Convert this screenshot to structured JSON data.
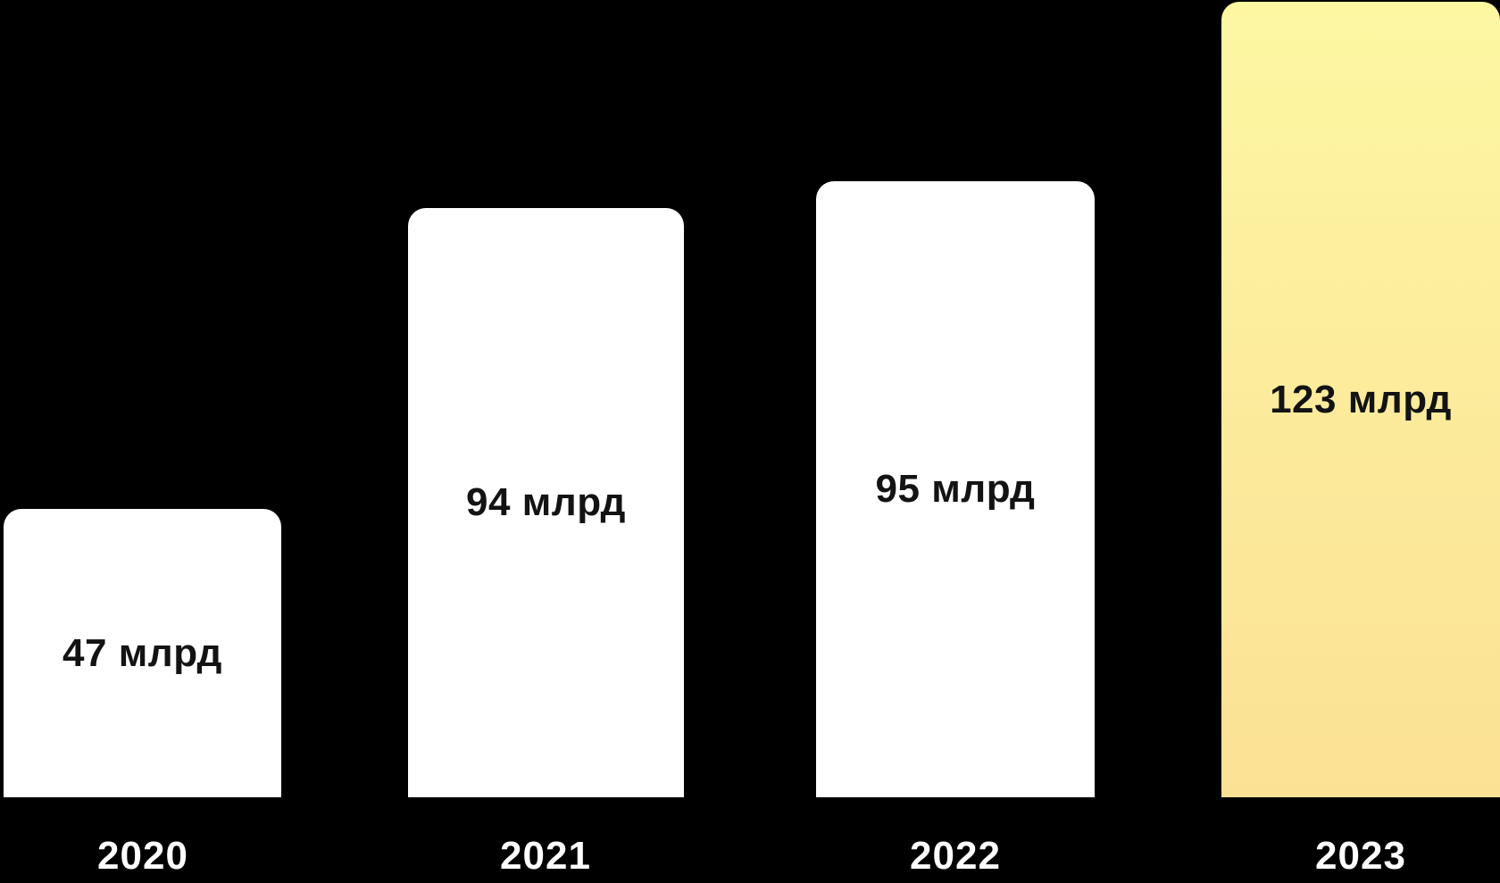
{
  "chart_data": {
    "type": "bar",
    "categories": [
      "2020",
      "2021",
      "2022",
      "2023"
    ],
    "values": [
      47,
      94,
      95,
      123
    ],
    "unit": "млрд",
    "bars": [
      {
        "category": "2020",
        "value": 47,
        "label": "47 млрд",
        "highlighted": false
      },
      {
        "category": "2021",
        "value": 94,
        "label": "94 млрд",
        "highlighted": false
      },
      {
        "category": "2022",
        "value": 95,
        "label": "95 млрд",
        "highlighted": false
      },
      {
        "category": "2023",
        "value": 123,
        "label": "123 млрд",
        "highlighted": true
      }
    ],
    "colors": {
      "background": "#000000",
      "bar_default": "#FFFFFF",
      "bar_highlight_gradient_top": "#FDF7A2",
      "bar_highlight_gradient_bottom": "#FBE194",
      "value_label_text": "#131313",
      "year_label_text": "#FFFFFF"
    },
    "legend": false,
    "grid": false,
    "axes_visible": false,
    "value_labels_position": "centered-inside-bars",
    "category_labels_position": "below-bars"
  }
}
